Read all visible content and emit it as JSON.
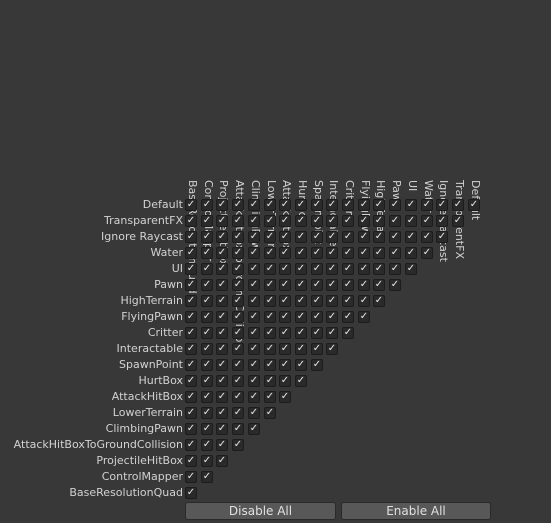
{
  "layers": [
    "Default",
    "TransparentFX",
    "Ignore Raycast",
    "Water",
    "UI",
    "Pawn",
    "HighTerrain",
    "FlyingPawn",
    "Critter",
    "Interactable",
    "SpawnPoint",
    "HurtBox",
    "AttackHitBox",
    "LowerTerrain",
    "ClimbingPawn",
    "AttackHitBoxToGroundCollision",
    "ProjectileHitBox",
    "ControlMapper",
    "BaseResolutionQuad"
  ],
  "checkmark": "✓",
  "all_checked": true,
  "buttons": {
    "disable_all": "Disable All",
    "enable_all": "Enable All"
  },
  "colors": {
    "background": "#383838",
    "text": "#d2d2d2",
    "checkbox_fill": "#2a2a2a",
    "button_fill": "#585858"
  }
}
